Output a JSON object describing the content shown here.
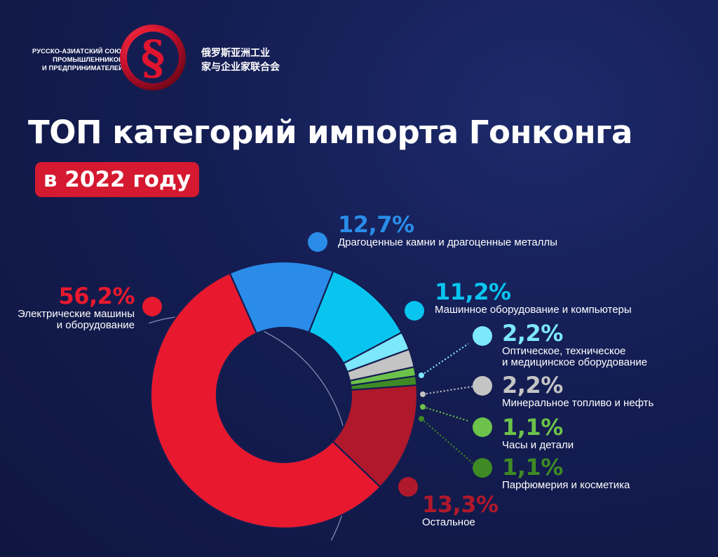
{
  "logo": {
    "ru_lines": [
      "РУССКО-АЗИАТСКИЙ СОЮЗ",
      "ПРОМЫШЛЕННИКОВ",
      "И ПРЕДПРИНИМАТЕЛЕЙ"
    ],
    "cn_lines": [
      "俄罗斯亚洲工业",
      "家与企业家联合会"
    ],
    "mark_icon": "section-sign-logo-icon",
    "mark_glyph": "§"
  },
  "title": "ТОП категорий импорта Гонконга",
  "subtitle": "в 2022 году",
  "colors": {
    "background": "#141d52",
    "badge": "#d41930",
    "electric": "#e8192e",
    "precious": "#2a8ce8",
    "machinery": "#08c5f0",
    "optical": "#7de8fb",
    "mineral": "#c4c4c4",
    "watches": "#6cc24a",
    "perfume": "#3f8a25",
    "other": "#b0182b"
  },
  "chart_data": {
    "type": "pie",
    "donut": true,
    "unit": "%",
    "slices": [
      {
        "pct": "12,7%",
        "value": 12.7,
        "lines": [
          "Драгоценные камни и драгоценные металлы"
        ],
        "color": "#2a8ce8"
      },
      {
        "pct": "11,2%",
        "value": 11.2,
        "lines": [
          "Машинное оборудование и компьютеры"
        ],
        "color": "#08c5f0"
      },
      {
        "pct": "2,2%",
        "value": 2.2,
        "lines": [
          "Оптическое, техническое",
          "и медицинское оборудование"
        ],
        "color": "#7de8fb"
      },
      {
        "pct": "2,2%",
        "value": 2.2,
        "lines": [
          "Минеральное топливо и нефть"
        ],
        "color": "#c4c4c4"
      },
      {
        "pct": "1,1%",
        "value": 1.1,
        "lines": [
          "Часы и детали"
        ],
        "color": "#6cc24a"
      },
      {
        "pct": "1,1%",
        "value": 1.1,
        "lines": [
          "Парфюмерия и косметика"
        ],
        "color": "#3f8a25"
      },
      {
        "pct": "13,3%",
        "value": 13.3,
        "lines": [
          "Остальное"
        ],
        "color": "#b0182b"
      },
      {
        "pct": "56,2%",
        "value": 56.2,
        "lines": [
          "Электрические машины",
          "и оборудование"
        ],
        "color": "#e8192e"
      }
    ]
  }
}
